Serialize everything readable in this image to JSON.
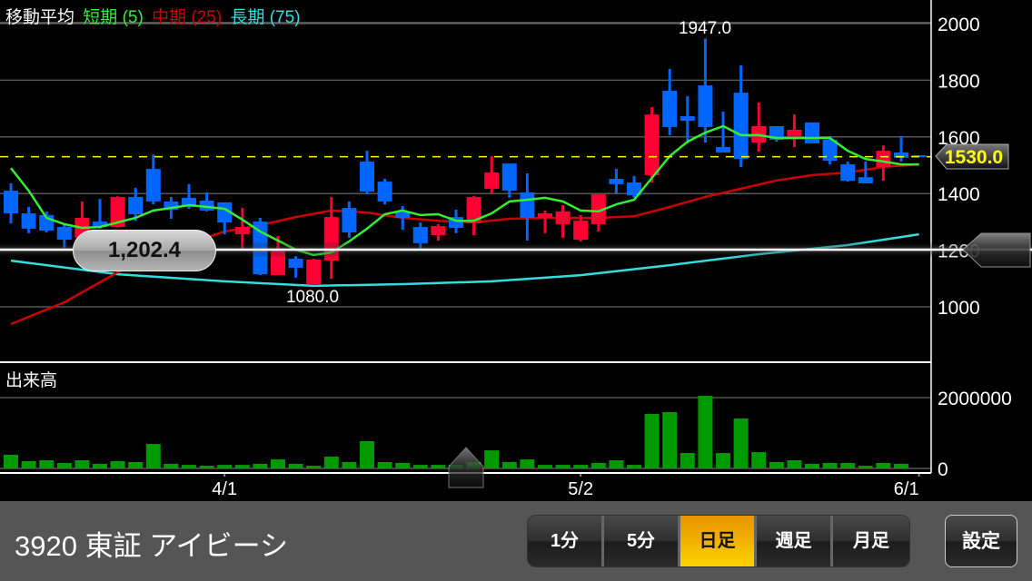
{
  "legend": {
    "title": "移動平均",
    "short": "短期 (5)",
    "mid": "中期 (25)",
    "long": "長期 (75)"
  },
  "volume_label": "出来高",
  "crosshair_value": "1,202.4",
  "current_price_label": "1530.0",
  "high_label": "1947.0",
  "low_label": "1080.0",
  "colors": {
    "up": "#ff0033",
    "down": "#0066ff",
    "ma_short": "#33ee33",
    "ma_mid": "#cc0000",
    "ma_long": "#33dddd",
    "volume": "#009900",
    "current_price": "#ffff00",
    "active_tab": "#f2b000"
  },
  "footer": {
    "stock_title": "3920 東証 アイビーシ",
    "tabs": [
      {
        "label": "1分",
        "active": false
      },
      {
        "label": "5分",
        "active": false
      },
      {
        "label": "日足",
        "active": true
      },
      {
        "label": "週足",
        "active": false
      },
      {
        "label": "月足",
        "active": false
      }
    ],
    "settings_label": "設定"
  },
  "chart_data": {
    "type": "candlestick",
    "price_axis": {
      "ticks": [
        "2000",
        "1800",
        "1600",
        "1400",
        "1200",
        "1000"
      ],
      "range": [
        1000,
        2000
      ]
    },
    "volume_axis": {
      "ticks": [
        "2000000",
        "0"
      ],
      "range": [
        0,
        2000000
      ]
    },
    "x_labels": [
      {
        "index": 12,
        "label": "4/1"
      },
      {
        "index": 32,
        "label": "5/2"
      },
      {
        "index": 51,
        "label": "6/1"
      }
    ],
    "current_price": 1530.0,
    "crosshair_price": 1202.4,
    "candles_ohlc": [
      [
        1410,
        1436,
        1295,
        1330
      ],
      [
        1330,
        1353,
        1260,
        1276
      ],
      [
        1324,
        1337,
        1263,
        1269
      ],
      [
        1282,
        1295,
        1208,
        1237
      ],
      [
        1244,
        1372,
        1235,
        1314
      ],
      [
        1301,
        1381,
        1276,
        1282
      ],
      [
        1282,
        1390,
        1280,
        1388
      ],
      [
        1388,
        1420,
        1304,
        1327
      ],
      [
        1487,
        1538,
        1362,
        1372
      ],
      [
        1372,
        1388,
        1311,
        1343
      ],
      [
        1385,
        1433,
        1346,
        1353
      ],
      [
        1375,
        1404,
        1337,
        1340
      ],
      [
        1369,
        1369,
        1256,
        1298
      ],
      [
        1256,
        1349,
        1202,
        1282
      ],
      [
        1301,
        1314,
        1112,
        1115
      ],
      [
        1112,
        1250,
        1112,
        1202
      ],
      [
        1170,
        1179,
        1103,
        1138
      ],
      [
        1080,
        1170,
        1080,
        1167
      ],
      [
        1163,
        1388,
        1099,
        1317
      ],
      [
        1349,
        1372,
        1244,
        1263
      ],
      [
        1513,
        1551,
        1397,
        1407
      ],
      [
        1442,
        1452,
        1362,
        1372
      ],
      [
        1337,
        1356,
        1272,
        1314
      ],
      [
        1282,
        1298,
        1202,
        1224
      ],
      [
        1253,
        1292,
        1234,
        1285
      ],
      [
        1317,
        1343,
        1260,
        1279
      ],
      [
        1295,
        1391,
        1253,
        1388
      ],
      [
        1417,
        1532,
        1401,
        1474
      ],
      [
        1506,
        1506,
        1385,
        1410
      ],
      [
        1404,
        1471,
        1234,
        1314
      ],
      [
        1314,
        1340,
        1260,
        1330
      ],
      [
        1292,
        1359,
        1244,
        1337
      ],
      [
        1237,
        1324,
        1231,
        1304
      ],
      [
        1292,
        1397,
        1266,
        1397
      ],
      [
        1452,
        1487,
        1401,
        1433
      ],
      [
        1439,
        1462,
        1385,
        1394
      ],
      [
        1465,
        1705,
        1439,
        1679
      ],
      [
        1763,
        1840,
        1606,
        1635
      ],
      [
        1673,
        1744,
        1577,
        1657
      ],
      [
        1782,
        1947,
        1580,
        1635
      ],
      [
        1564,
        1689,
        1545,
        1545
      ],
      [
        1756,
        1853,
        1494,
        1522
      ],
      [
        1580,
        1721,
        1548,
        1638
      ],
      [
        1638,
        1638,
        1583,
        1590
      ],
      [
        1603,
        1679,
        1564,
        1625
      ],
      [
        1651,
        1651,
        1577,
        1577
      ],
      [
        1590,
        1603,
        1503,
        1516
      ],
      [
        1503,
        1513,
        1442,
        1445
      ],
      [
        1458,
        1513,
        1436,
        1436
      ],
      [
        1494,
        1570,
        1445,
        1551
      ],
      [
        1545,
        1603,
        1513,
        1526
      ],
      [
        1535,
        1535,
        1528,
        1530
      ]
    ],
    "volume": [
      385000,
      205000,
      230000,
      155000,
      230000,
      130000,
      205000,
      180000,
      690000,
      130000,
      100000,
      75000,
      100000,
      100000,
      130000,
      255000,
      130000,
      75000,
      335000,
      180000,
      770000,
      180000,
      155000,
      100000,
      100000,
      100000,
      180000,
      510000,
      180000,
      255000,
      100000,
      100000,
      100000,
      155000,
      230000,
      100000,
      1540000,
      1590000,
      435000,
      2050000,
      435000,
      1410000,
      460000,
      180000,
      230000,
      130000,
      155000,
      155000,
      75000,
      155000,
      130000,
      0
    ],
    "ma_short": [
      1490,
      1410,
      1314,
      1292,
      1279,
      1282,
      1298,
      1314,
      1340,
      1349,
      1359,
      1353,
      1346,
      1308,
      1266,
      1234,
      1202,
      1183,
      1192,
      1231,
      1276,
      1327,
      1340,
      1324,
      1327,
      1304,
      1304,
      1330,
      1372,
      1378,
      1385,
      1372,
      1340,
      1337,
      1362,
      1378,
      1455,
      1532,
      1583,
      1615,
      1638,
      1606,
      1606,
      1596,
      1596,
      1596,
      1596,
      1551,
      1522,
      1513,
      1503,
      1503
    ],
    "ma_mid": [
      [
        0,
        939
      ],
      [
        3,
        1016
      ],
      [
        6,
        1122
      ],
      [
        8,
        1176
      ],
      [
        10,
        1224
      ],
      [
        12,
        1266
      ],
      [
        14,
        1288
      ],
      [
        16,
        1317
      ],
      [
        18,
        1340
      ],
      [
        20,
        1333
      ],
      [
        22,
        1314
      ],
      [
        24,
        1304
      ],
      [
        26,
        1298
      ],
      [
        28,
        1311
      ],
      [
        30,
        1314
      ],
      [
        33,
        1314
      ],
      [
        35,
        1320
      ],
      [
        37,
        1353
      ],
      [
        39,
        1388
      ],
      [
        41,
        1417
      ],
      [
        43,
        1446
      ],
      [
        45,
        1465
      ],
      [
        47,
        1474
      ],
      [
        49,
        1494
      ],
      [
        51,
        1503
      ]
    ],
    "ma_long": [
      [
        0,
        1163
      ],
      [
        6,
        1115
      ],
      [
        12,
        1090
      ],
      [
        17,
        1074
      ],
      [
        22,
        1080
      ],
      [
        27,
        1090
      ],
      [
        32,
        1112
      ],
      [
        37,
        1147
      ],
      [
        42,
        1186
      ],
      [
        47,
        1218
      ],
      [
        51,
        1256
      ]
    ]
  }
}
